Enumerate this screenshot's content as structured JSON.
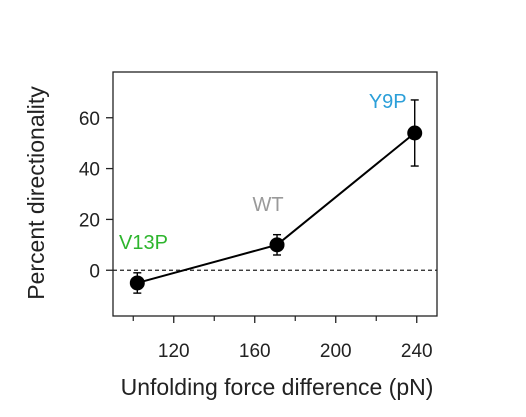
{
  "chart_data": {
    "type": "scatter",
    "xlabel": "Unfolding force difference (pN)",
    "ylabel": "Percent directionality",
    "xlim": [
      90,
      250
    ],
    "ylim": [
      -18,
      78
    ],
    "x_ticks": [
      120,
      160,
      200,
      240
    ],
    "x_tick_labels": [
      "120",
      "160",
      "200",
      "240"
    ],
    "x_minor_ticks": [
      100,
      140,
      180,
      220
    ],
    "y_ticks": [
      0,
      20,
      40,
      60
    ],
    "y_tick_labels": [
      "0",
      "20",
      "40",
      "60"
    ],
    "reference_line": {
      "y": 0,
      "style": "dashed"
    },
    "grid": false,
    "connect_points": true,
    "points": [
      {
        "label": "V13P",
        "x": 102,
        "y": -5,
        "err": 4,
        "label_color": "#2db52d"
      },
      {
        "label": "WT",
        "x": 171,
        "y": 10,
        "err": 4,
        "label_color": "#9a9a9a"
      },
      {
        "label": "Y9P",
        "x": 239,
        "y": 54,
        "err": 13,
        "label_color": "#2b9fd9"
      }
    ]
  },
  "colors": {
    "axis": "#222222",
    "marker": "#000000"
  }
}
